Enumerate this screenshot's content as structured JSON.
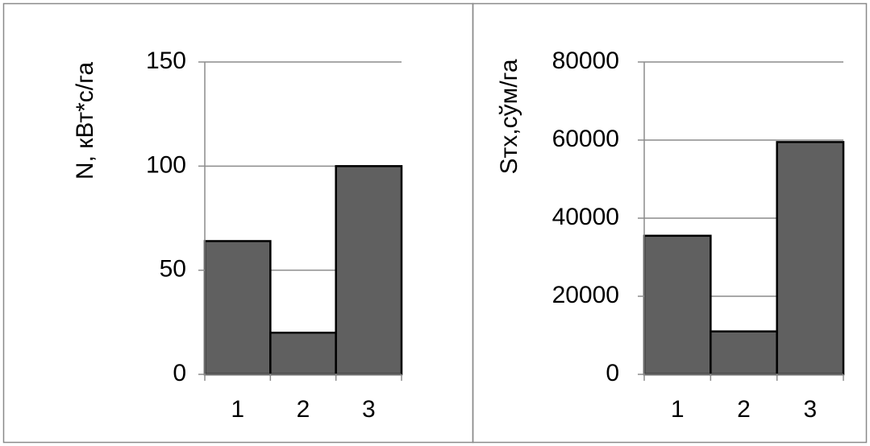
{
  "chart_data": [
    {
      "type": "bar",
      "categories": [
        "1",
        "2",
        "3"
      ],
      "values": [
        64,
        20,
        100
      ],
      "title": "",
      "xlabel": "",
      "ylabel": "N, кВт*с/га",
      "ylim": [
        0,
        150
      ],
      "yticks": [
        "0",
        "50",
        "100",
        "150"
      ],
      "grid": true,
      "bar_color": "#606060"
    },
    {
      "type": "bar",
      "categories": [
        "1",
        "2",
        "3"
      ],
      "values": [
        35500,
        11000,
        59500
      ],
      "title": "",
      "xlabel": "",
      "ylabel": "Sтх,сўм/га",
      "ylim": [
        0,
        80000
      ],
      "yticks": [
        "0",
        "20000",
        "40000",
        "60000",
        "80000"
      ],
      "grid": true,
      "bar_color": "#606060"
    }
  ]
}
